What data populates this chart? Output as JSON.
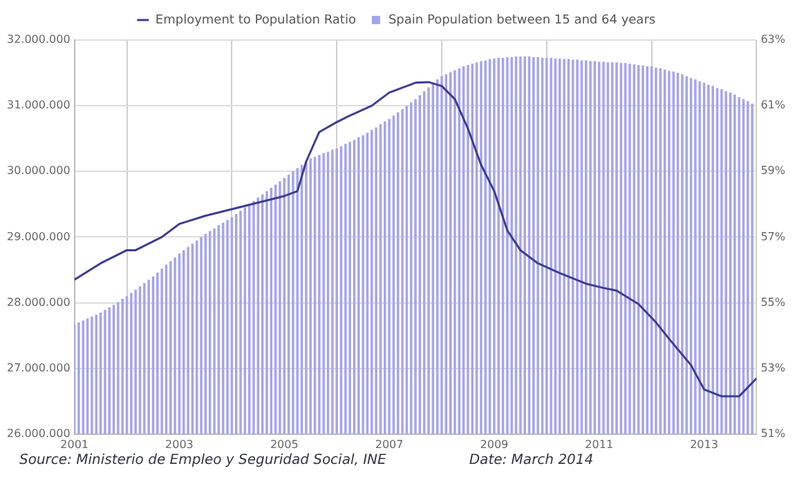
{
  "chart_data": {
    "type": "bar",
    "x": [
      "2001-01",
      "2001-02",
      "2001-03",
      "2001-04",
      "2001-05",
      "2001-06",
      "2001-07",
      "2001-08",
      "2001-09",
      "2001-10",
      "2001-11",
      "2001-12",
      "2002-01",
      "2002-02",
      "2002-03",
      "2002-04",
      "2002-05",
      "2002-06",
      "2002-07",
      "2002-08",
      "2002-09",
      "2002-10",
      "2002-11",
      "2002-12",
      "2003-01",
      "2003-02",
      "2003-03",
      "2003-04",
      "2003-05",
      "2003-06",
      "2003-07",
      "2003-08",
      "2003-09",
      "2003-10",
      "2003-11",
      "2003-12",
      "2004-01",
      "2004-02",
      "2004-03",
      "2004-04",
      "2004-05",
      "2004-06",
      "2004-07",
      "2004-08",
      "2004-09",
      "2004-10",
      "2004-11",
      "2004-12",
      "2005-01",
      "2005-02",
      "2005-03",
      "2005-04",
      "2005-05",
      "2005-06",
      "2005-07",
      "2005-08",
      "2005-09",
      "2005-10",
      "2005-11",
      "2005-12",
      "2006-01",
      "2006-02",
      "2006-03",
      "2006-04",
      "2006-05",
      "2006-06",
      "2006-07",
      "2006-08",
      "2006-09",
      "2006-10",
      "2006-11",
      "2006-12",
      "2007-01",
      "2007-02",
      "2007-03",
      "2007-04",
      "2007-05",
      "2007-06",
      "2007-07",
      "2007-08",
      "2007-09",
      "2007-10",
      "2007-11",
      "2007-12",
      "2008-01",
      "2008-02",
      "2008-03",
      "2008-04",
      "2008-05",
      "2008-06",
      "2008-07",
      "2008-08",
      "2008-09",
      "2008-10",
      "2008-11",
      "2008-12",
      "2009-01",
      "2009-02",
      "2009-03",
      "2009-04",
      "2009-05",
      "2009-06",
      "2009-07",
      "2009-08",
      "2009-09",
      "2009-10",
      "2009-11",
      "2009-12",
      "2010-01",
      "2010-02",
      "2010-03",
      "2010-04",
      "2010-05",
      "2010-06",
      "2010-07",
      "2010-08",
      "2010-09",
      "2010-10",
      "2010-11",
      "2010-12",
      "2011-01",
      "2011-02",
      "2011-03",
      "2011-04",
      "2011-05",
      "2011-06",
      "2011-07",
      "2011-08",
      "2011-09",
      "2011-10",
      "2011-11",
      "2011-12",
      "2012-01",
      "2012-02",
      "2012-03",
      "2012-04",
      "2012-05",
      "2012-06",
      "2012-07",
      "2012-08",
      "2012-09",
      "2012-10",
      "2012-11",
      "2012-12",
      "2013-01",
      "2013-02",
      "2013-03",
      "2013-04",
      "2013-05",
      "2013-06",
      "2013-07",
      "2013-08",
      "2013-09",
      "2013-10",
      "2013-11",
      "2013-12"
    ],
    "series": [
      {
        "name": "Spain Population between 15 and 64 years",
        "color": "#a4a4ee",
        "values": [
          27670000,
          27700000,
          27730000,
          27760000,
          27790000,
          27820000,
          27850000,
          27890000,
          27930000,
          27970000,
          28010000,
          28060000,
          28100000,
          28150000,
          28200000,
          28250000,
          28300000,
          28350000,
          28400000,
          28460000,
          28520000,
          28580000,
          28630000,
          28690000,
          28750000,
          28800000,
          28850000,
          28900000,
          28950000,
          29000000,
          29050000,
          29090000,
          29130000,
          29180000,
          29220000,
          29260000,
          29300000,
          29350000,
          29400000,
          29450000,
          29500000,
          29550000,
          29600000,
          29650000,
          29700000,
          29750000,
          29800000,
          29850000,
          29900000,
          29950000,
          30000000,
          30050000,
          30100000,
          30150000,
          30200000,
          30220000,
          30250000,
          30280000,
          30300000,
          30330000,
          30350000,
          30380000,
          30420000,
          30450000,
          30480000,
          30520000,
          30550000,
          30590000,
          30630000,
          30670000,
          30720000,
          30760000,
          30800000,
          30850000,
          30900000,
          30950000,
          31000000,
          31050000,
          31100000,
          31160000,
          31220000,
          31280000,
          31340000,
          31400000,
          31450000,
          31480000,
          31510000,
          31540000,
          31570000,
          31600000,
          31620000,
          31640000,
          31660000,
          31680000,
          31690000,
          31710000,
          31720000,
          31730000,
          31730000,
          31740000,
          31740000,
          31750000,
          31750000,
          31750000,
          31750000,
          31740000,
          31740000,
          31730000,
          31730000,
          31730000,
          31720000,
          31720000,
          31710000,
          31710000,
          31700000,
          31700000,
          31690000,
          31690000,
          31680000,
          31680000,
          31670000,
          31670000,
          31660000,
          31660000,
          31660000,
          31650000,
          31650000,
          31640000,
          31630000,
          31620000,
          31610000,
          31600000,
          31600000,
          31580000,
          31570000,
          31550000,
          31530000,
          31520000,
          31500000,
          31480000,
          31450000,
          31420000,
          31400000,
          31370000,
          31350000,
          31320000,
          31300000,
          31270000,
          31250000,
          31220000,
          31200000,
          31170000,
          31130000,
          31100000,
          31070000,
          31030000
        ]
      },
      {
        "name": "Employment to Population Ratio",
        "type": "line",
        "axis": "y2",
        "color": "#3c3c94",
        "x": [
          "2001-01",
          "2001-07",
          "2002-01",
          "2002-03",
          "2002-09",
          "2003-01",
          "2003-07",
          "2004-01",
          "2004-07",
          "2005-01",
          "2005-04",
          "2005-06",
          "2005-09",
          "2006-01",
          "2006-04",
          "2006-09",
          "2007-01",
          "2007-07",
          "2007-10",
          "2008-01",
          "2008-04",
          "2008-07",
          "2008-10",
          "2009-01",
          "2009-04",
          "2009-07",
          "2009-11",
          "2010-04",
          "2010-10",
          "2011-02",
          "2011-05",
          "2011-10",
          "2012-02",
          "2012-05",
          "2012-10",
          "2013-01",
          "2013-05",
          "2013-09",
          "2014-01"
        ],
        "values": [
          55.7,
          56.2,
          56.6,
          56.6,
          57.0,
          57.4,
          57.65,
          57.85,
          58.05,
          58.25,
          58.4,
          59.3,
          60.2,
          60.5,
          60.7,
          61.0,
          61.4,
          61.7,
          61.72,
          61.6,
          61.2,
          60.3,
          59.2,
          58.4,
          57.2,
          56.6,
          56.2,
          55.9,
          55.58,
          55.45,
          55.37,
          54.96,
          54.4,
          53.9,
          53.1,
          52.36,
          52.15,
          52.15,
          52.7
        ]
      }
    ],
    "xlim": [
      "2001-01",
      "2014-01"
    ],
    "xticks": [
      "2001",
      "2003",
      "2005",
      "2007",
      "2009",
      "2011",
      "2013"
    ],
    "ylim": [
      26000000,
      32000000
    ],
    "yticks": [
      {
        "value": 26000000,
        "label": "26.000.000"
      },
      {
        "value": 27000000,
        "label": "27.000.000"
      },
      {
        "value": 28000000,
        "label": "28.000.000"
      },
      {
        "value": 29000000,
        "label": "29.000.000"
      },
      {
        "value": 30000000,
        "label": "30.000.000"
      },
      {
        "value": 31000000,
        "label": "31.000.000"
      },
      {
        "value": 32000000,
        "label": "32.000.000"
      }
    ],
    "y2lim": [
      51,
      63
    ],
    "y2ticks": [
      {
        "value": 51,
        "label": "51%"
      },
      {
        "value": 53,
        "label": "53%"
      },
      {
        "value": 55,
        "label": "55%"
      },
      {
        "value": 57,
        "label": "57%"
      },
      {
        "value": 59,
        "label": "59%"
      },
      {
        "value": 61,
        "label": "61%"
      },
      {
        "value": 63,
        "label": "63%"
      }
    ],
    "grid": true,
    "legend": "top",
    "annotations": [
      "Source: Ministerio de Empleo y Seguridad Social, INE",
      "Date: March 2014"
    ]
  }
}
